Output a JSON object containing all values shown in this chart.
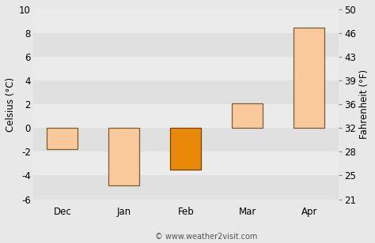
{
  "categories": [
    "Dec",
    "Jan",
    "Feb",
    "Mar",
    "Apr"
  ],
  "values": [
    -1.8,
    -4.8,
    -3.5,
    2.1,
    8.5
  ],
  "bar_colors": [
    "#f9c99b",
    "#f9c99b",
    "#e8890a",
    "#f9c99b",
    "#f9c99b"
  ],
  "bar_edgecolors": [
    "#7a5a30",
    "#7a5a30",
    "#7a4000",
    "#7a5a30",
    "#7a5a30"
  ],
  "ylim_celsius": [
    -6,
    10
  ],
  "yticks_celsius": [
    -6,
    -4,
    -2,
    0,
    2,
    4,
    6,
    8,
    10
  ],
  "yticks_fahrenheit": [
    21,
    25,
    28,
    32,
    36,
    39,
    43,
    46,
    50
  ],
  "ylabel_left": "Celsius (°C)",
  "ylabel_right": "Fahrenheit (°F)",
  "fig_bg_color": "#e8e8e8",
  "band_colors": [
    "#e0e0e0",
    "#ebebeb"
  ],
  "grid_color": "#ffffff",
  "watermark": "© www.weather2visit.com",
  "bar_width": 0.5,
  "tick_label_fontsize": 8.5,
  "axis_label_fontsize": 8.5
}
